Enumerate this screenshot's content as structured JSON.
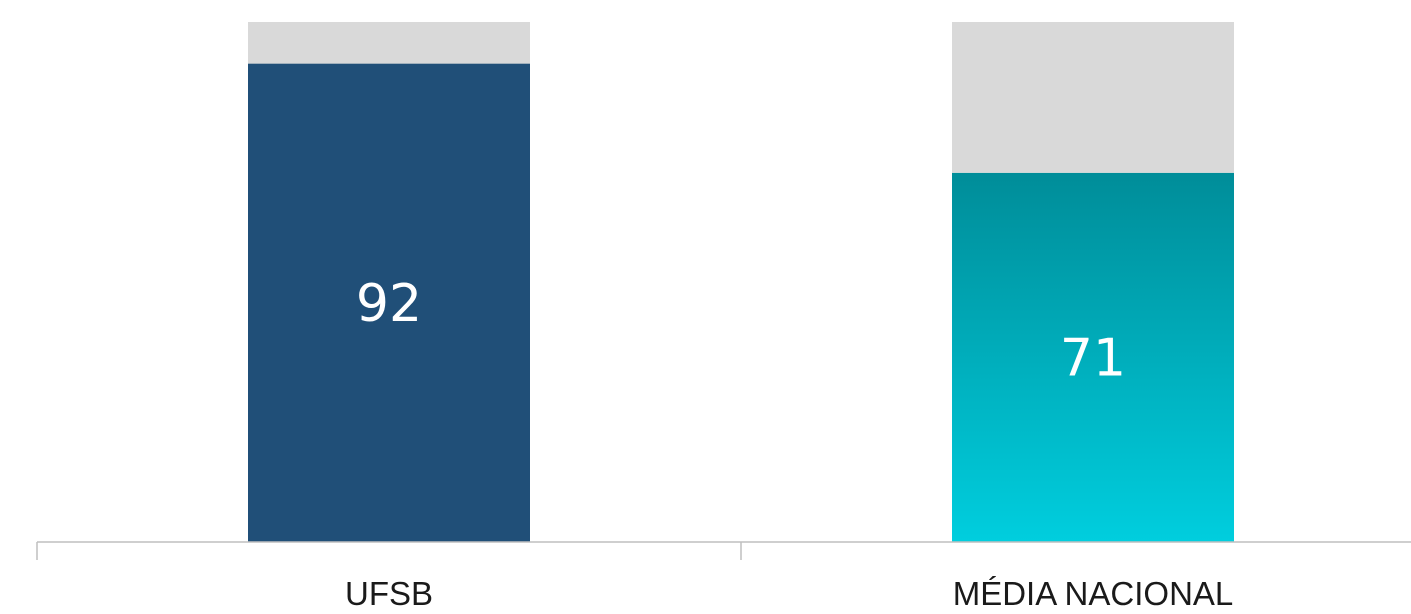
{
  "chart_data": {
    "type": "bar",
    "stacked": true,
    "categories": [
      "UFSB",
      "MÉDIA NACIONAL"
    ],
    "series": [
      {
        "values": [
          92,
          71
        ]
      },
      {
        "values": [
          8,
          29
        ]
      }
    ],
    "ylim": [
      0,
      100
    ],
    "grid": false,
    "legend": "none",
    "colors": {
      "ufsb": "#204f78",
      "media_top": "#008d99",
      "media_bottom": "#00cede",
      "remainder": "#d9d9d9",
      "label_text": "#ffffff",
      "axis": "#bfbfbf"
    }
  }
}
